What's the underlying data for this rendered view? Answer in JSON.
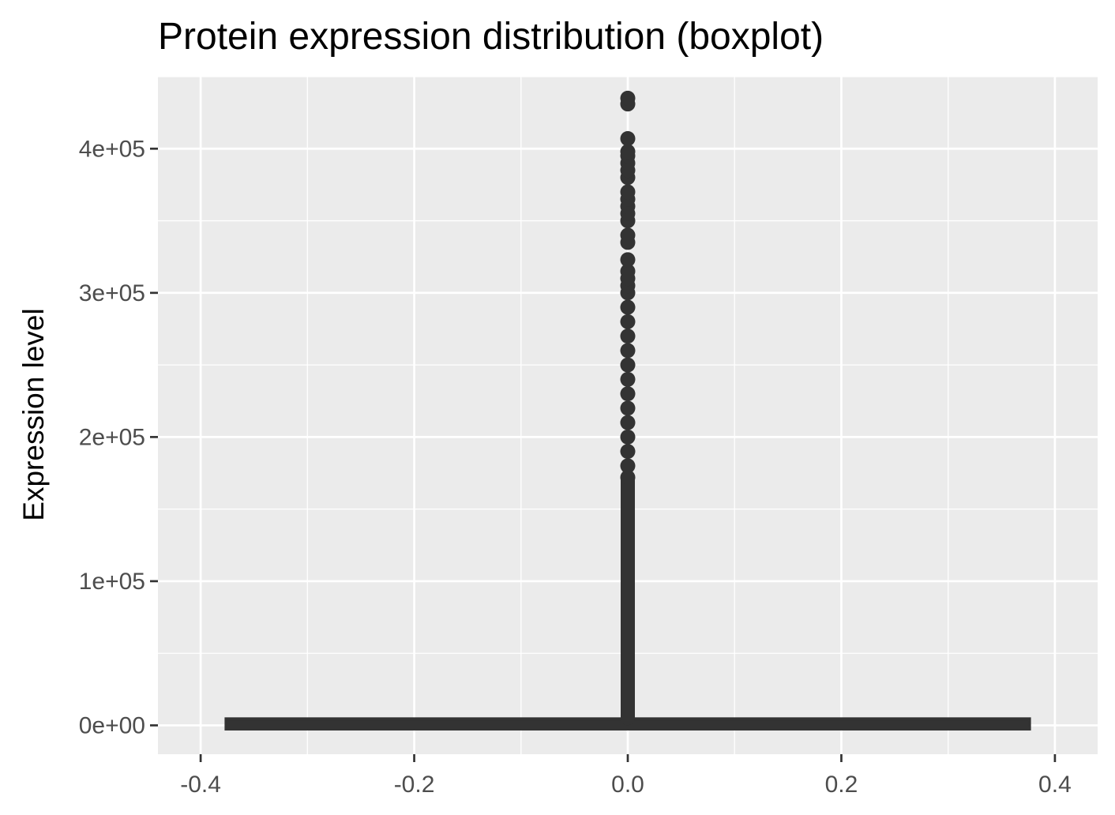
{
  "chart_data": {
    "type": "boxplot",
    "title": "Protein expression distribution (boxplot)",
    "xlabel": "",
    "ylabel": "Expression level",
    "xlim": [
      -0.4,
      0.4
    ],
    "ylim": [
      -20000,
      450000
    ],
    "x_ticks": [
      -0.4,
      -0.2,
      0.0,
      0.2,
      0.4
    ],
    "x_tick_labels": [
      "-0.4",
      "-0.2",
      "0.0",
      "0.2",
      "0.4"
    ],
    "y_ticks": [
      0,
      100000,
      200000,
      300000,
      400000
    ],
    "y_tick_labels": [
      "0e+00",
      "1e+05",
      "2e+05",
      "3e+05",
      "4e+05"
    ],
    "grid": true,
    "box": {
      "x": 0.0,
      "xmin": -0.375,
      "xmax": 0.375,
      "q1": 0,
      "median": 1000,
      "q3": 2000,
      "whisker_low": 0,
      "whisker_high": 5000
    },
    "outlier_column": {
      "x": 0.0,
      "from": 5000,
      "to": 170000
    },
    "outliers": [
      172000,
      180000,
      190000,
      200000,
      210000,
      220000,
      230000,
      240000,
      250000,
      260000,
      270000,
      280000,
      290000,
      300000,
      305000,
      310000,
      315000,
      323000,
      335000,
      340000,
      350000,
      355000,
      360000,
      365000,
      370000,
      380000,
      385000,
      390000,
      395000,
      398000,
      407000,
      431000,
      435000
    ],
    "colors": {
      "panel": "#ebebeb",
      "grid": "#ffffff",
      "mark": "#333333",
      "tick": "#333333"
    }
  }
}
